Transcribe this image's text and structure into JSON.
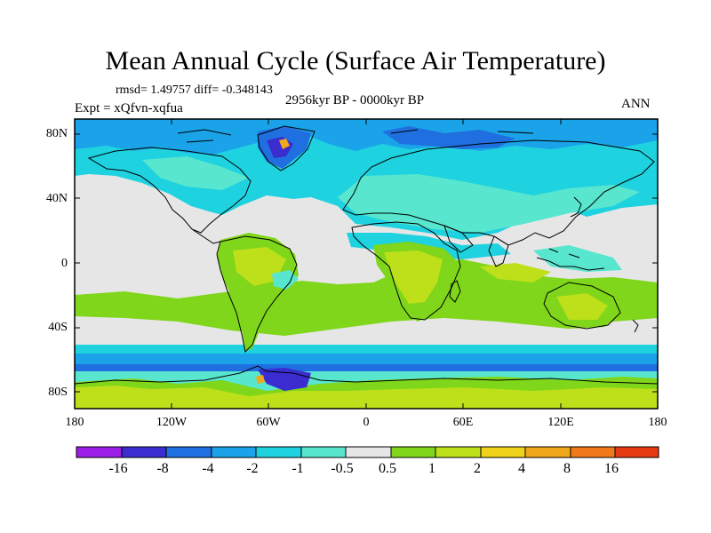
{
  "title": "Mean Annual Cycle (Surface Air Temperature)",
  "stats_line": "rmsd= 1.49757 diff= -0.348143",
  "period_line": "2956kyr BP - 0000kyr BP",
  "experiment_line": "Expt = xQfvn-xqfua",
  "season": "ANN",
  "y_axis": {
    "ticks": [
      "80N",
      "40N",
      "0",
      "40S",
      "80S"
    ]
  },
  "x_axis": {
    "ticks": [
      "180",
      "120W",
      "60W",
      "0",
      "60E",
      "120E",
      "180"
    ]
  },
  "colorbar": {
    "colors": [
      "#9b1fe6",
      "#3a2ccf",
      "#1f6fe0",
      "#1aa3e8",
      "#1fd2e0",
      "#58e6cf",
      "#e6e6e6",
      "#7fd61a",
      "#bde01a",
      "#f0d21a",
      "#f0a81a",
      "#f07a1a",
      "#e63a12"
    ],
    "labels": [
      "-16",
      "-8",
      "-4",
      "-2",
      "-1",
      "-0.5",
      "0.5",
      "1",
      "2",
      "4",
      "8",
      "16"
    ]
  },
  "palette": {
    "neutral": "#e6e6e6",
    "light_cyan": "#58e6cf",
    "cyan": "#1fd2e0",
    "sky": "#1aa3e8",
    "blue": "#1f6fe0",
    "dark_blue": "#3a2ccf",
    "green": "#7fd61a",
    "yellow_green": "#bde01a",
    "yellow": "#f0d21a",
    "orange": "#f0a81a",
    "coast": "#000000"
  }
}
